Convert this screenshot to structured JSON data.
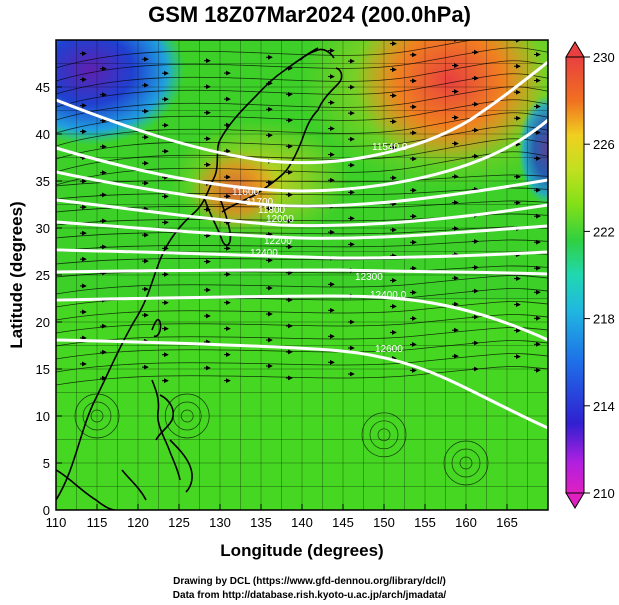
{
  "title": "GSM 18Z07Mar2024 (200.0hPa)",
  "x_axis": {
    "label": "Longitude (degrees)",
    "min": 110,
    "max": 170,
    "ticks": [
      "110",
      "115",
      "120",
      "125",
      "130",
      "135",
      "140",
      "145",
      "150",
      "155",
      "160",
      "165"
    ]
  },
  "y_axis": {
    "label": "Latitude  (degrees)",
    "min": 0,
    "max": 50,
    "ticks": [
      "0",
      "5",
      "10",
      "15",
      "20",
      "25",
      "30",
      "35",
      "40",
      "45"
    ]
  },
  "colorbar": {
    "ticks": [
      "210",
      "214",
      "218",
      "222",
      "226",
      "230"
    ],
    "colors": [
      "#e020c0",
      "#b020e0",
      "#3020d0",
      "#1e6fe8",
      "#20b8e0",
      "#20d8b0",
      "#30d040",
      "#48d818",
      "#80e018",
      "#c0e020",
      "#f0d020",
      "#f0a020",
      "#f07020",
      "#e84040"
    ]
  },
  "contour_labels": [
    "11600",
    "11700",
    "11800",
    "12000",
    "12200",
    "12400",
    "11540.0",
    "12300",
    "12400.0",
    "12600"
  ],
  "credits": [
    "Drawing by DCL (https://www.gfd-dennou.org/library/dcl/)",
    "Data from http://database.rish.kyoto-u.ac.jp/arch/jmadata/"
  ]
}
